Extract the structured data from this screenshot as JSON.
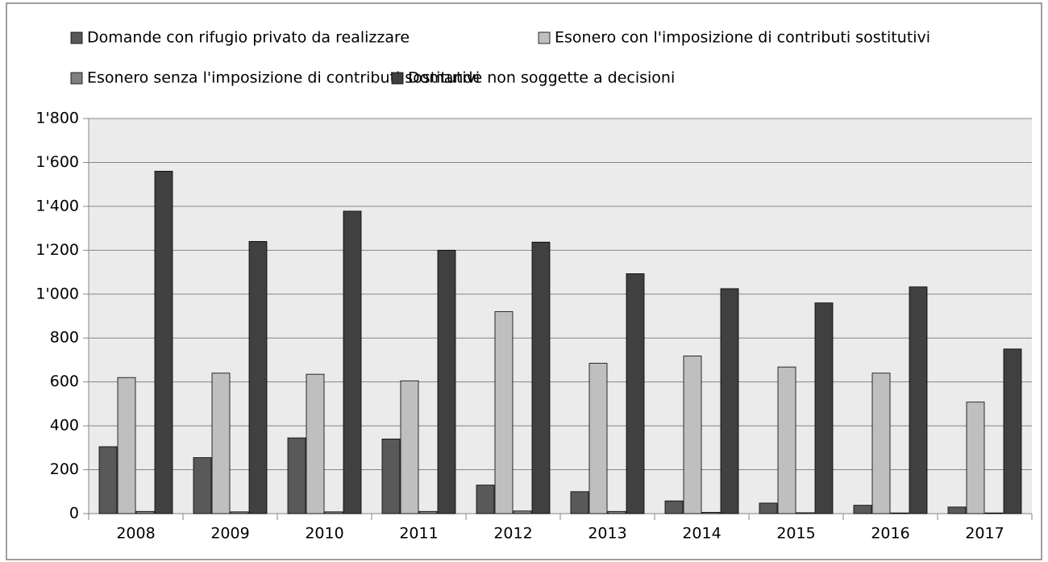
{
  "chart_data": {
    "type": "bar",
    "categories": [
      "2008",
      "2009",
      "2010",
      "2011",
      "2012",
      "2013",
      "2014",
      "2015",
      "2016",
      "2017"
    ],
    "series": [
      {
        "name": "Domande con rifugio privato da realizzare",
        "color": "#595959",
        "values": [
          305,
          255,
          345,
          340,
          130,
          100,
          58,
          48,
          38,
          30
        ]
      },
      {
        "name": "Esonero con l'imposizione di contributi sostitutivi",
        "color": "#bfbfbf",
        "values": [
          620,
          640,
          635,
          605,
          920,
          685,
          718,
          668,
          640,
          508
        ]
      },
      {
        "name": "Esonero senza l'imposizione di contributi sostitutivi",
        "color": "#7f7f7f",
        "values": [
          10,
          8,
          8,
          10,
          12,
          10,
          6,
          4,
          3,
          3
        ]
      },
      {
        "name": "Domande non soggette a decisioni",
        "color": "#404040",
        "values": [
          1560,
          1240,
          1378,
          1200,
          1237,
          1093,
          1025,
          960,
          1033,
          750
        ]
      }
    ],
    "ylim": [
      0,
      1800
    ],
    "yticks": [
      0,
      200,
      400,
      600,
      800,
      {
        "value": 1000,
        "label": "1'000"
      },
      {
        "value": 1200,
        "label": "1'200"
      },
      {
        "value": 1400,
        "label": "1'400"
      },
      {
        "value": 1600,
        "label": "1'600"
      },
      {
        "value": 1800,
        "label": "1'800"
      }
    ],
    "grid": true,
    "legend": "top"
  }
}
